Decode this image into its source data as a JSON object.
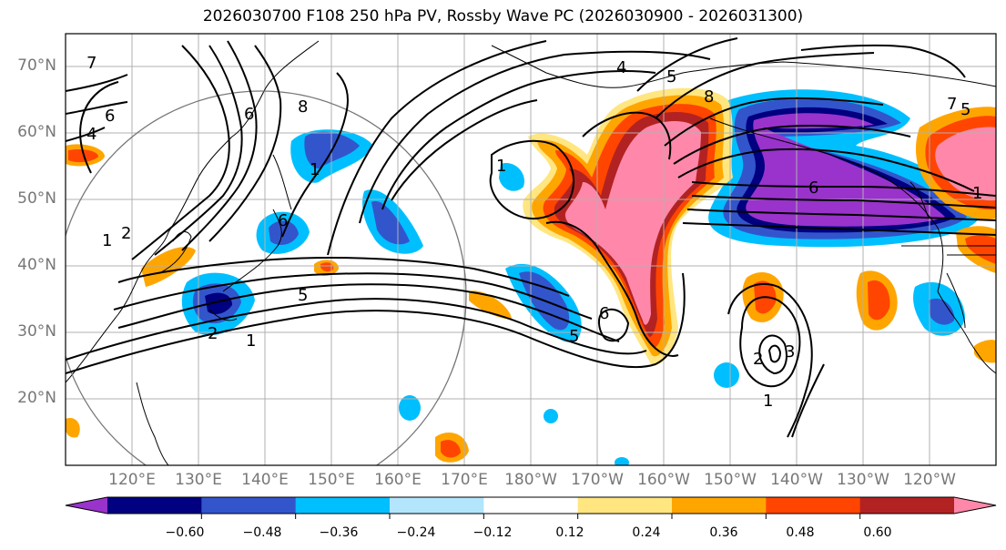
{
  "title": "2026030700 F108 250 hPa PV, Rossby Wave PC (2026030900 - 2026031300)",
  "lat_labels": [
    "70°N",
    "60°N",
    "50°N",
    "40°N",
    "30°N",
    "20°N"
  ],
  "lon_labels": [
    "120°E",
    "130°E",
    "140°E",
    "150°E",
    "160°E",
    "170°E",
    "180°W",
    "170°W",
    "160°W",
    "150°W",
    "140°W",
    "130°W",
    "120°W"
  ],
  "colorbar": {
    "colors": [
      "#9933cc",
      "#000080",
      "#3355cc",
      "#00bfff",
      "#b3e5fc",
      "#ffffff",
      "#ffe680",
      "#ffa500",
      "#ff4500",
      "#b22222",
      "#ff88aa"
    ],
    "ticks": [
      "−0.60",
      "−0.48",
      "−0.36",
      "−0.24",
      "−0.12",
      "0.12",
      "0.24",
      "0.36",
      "0.48",
      "0.60"
    ]
  },
  "contour_labels": [
    "6",
    "4",
    "7",
    "8",
    "6",
    "5",
    "1",
    "4",
    "5",
    "8",
    "6",
    "1",
    "1",
    "2",
    "5",
    "1",
    "2",
    "6",
    "5",
    "7",
    "6",
    "2",
    "3",
    "1",
    "1"
  ]
}
